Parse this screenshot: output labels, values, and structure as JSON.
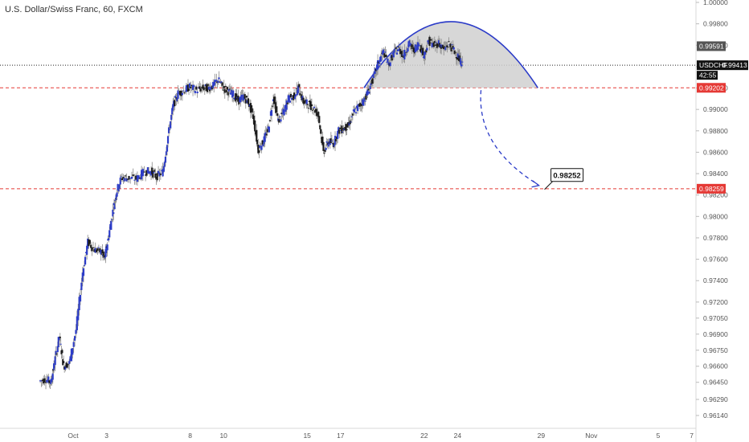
{
  "title": "U.S. Dollar/Swiss Franc, 60, FXCM",
  "chart_data": {
    "type": "candlestick",
    "symbol": "USDCHF",
    "ylim": [
      0.96,
      1.001
    ],
    "y_ticks": [
      "1.00000",
      "0.99800",
      "0.99600",
      "0.99400",
      "0.99200",
      "0.99000",
      "0.98800",
      "0.98600",
      "0.98400",
      "0.98200",
      "0.98000",
      "0.97800",
      "0.97600",
      "0.97400",
      "0.97200",
      "0.97050",
      "0.96900",
      "0.96750",
      "0.96600",
      "0.96450",
      "0.96290",
      "0.96140"
    ],
    "x_ticks": [
      {
        "label": "Oct",
        "day": 1
      },
      {
        "label": "3",
        "day": 3
      },
      {
        "label": "8",
        "day": 8
      },
      {
        "label": "10",
        "day": 10
      },
      {
        "label": "15",
        "day": 15
      },
      {
        "label": "17",
        "day": 17
      },
      {
        "label": "22",
        "day": 22
      },
      {
        "label": "24",
        "day": 24
      },
      {
        "label": "29",
        "day": 29
      },
      {
        "label": "Nov",
        "day": 32
      },
      {
        "label": "5",
        "day": 36
      },
      {
        "label": "7",
        "day": 38
      }
    ],
    "price_path": [
      [
        -1.0,
        0.9646
      ],
      [
        -0.6,
        0.9648
      ],
      [
        -0.3,
        0.9645
      ],
      [
        -0.1,
        0.9663
      ],
      [
        0.2,
        0.9688
      ],
      [
        0.45,
        0.966
      ],
      [
        0.8,
        0.9663
      ],
      [
        1.2,
        0.9694
      ],
      [
        1.6,
        0.9748
      ],
      [
        1.9,
        0.9776
      ],
      [
        2.3,
        0.9769
      ],
      [
        2.7,
        0.9767
      ],
      [
        2.9,
        0.976
      ],
      [
        3.1,
        0.9778
      ],
      [
        3.4,
        0.9805
      ],
      [
        3.6,
        0.9822
      ],
      [
        3.9,
        0.9836
      ],
      [
        4.3,
        0.9836
      ],
      [
        4.8,
        0.9835
      ],
      [
        5.3,
        0.9842
      ],
      [
        5.7,
        0.9842
      ],
      [
        6.0,
        0.9837
      ],
      [
        6.4,
        0.9842
      ],
      [
        6.7,
        0.9875
      ],
      [
        7.0,
        0.9903
      ],
      [
        7.3,
        0.9915
      ],
      [
        7.7,
        0.9918
      ],
      [
        8.0,
        0.9921
      ],
      [
        8.4,
        0.9918
      ],
      [
        8.8,
        0.992
      ],
      [
        9.1,
        0.992
      ],
      [
        9.4,
        0.9922
      ],
      [
        9.7,
        0.9928
      ],
      [
        10.0,
        0.992
      ],
      [
        10.3,
        0.9917
      ],
      [
        10.6,
        0.9914
      ],
      [
        10.9,
        0.9908
      ],
      [
        11.2,
        0.9912
      ],
      [
        11.5,
        0.9907
      ],
      [
        11.8,
        0.9893
      ],
      [
        12.1,
        0.9862
      ],
      [
        12.4,
        0.987
      ],
      [
        12.7,
        0.9882
      ],
      [
        13.0,
        0.9912
      ],
      [
        13.3,
        0.9889
      ],
      [
        13.6,
        0.9897
      ],
      [
        13.9,
        0.991
      ],
      [
        14.2,
        0.9912
      ],
      [
        14.5,
        0.992
      ],
      [
        14.8,
        0.9907
      ],
      [
        15.1,
        0.9905
      ],
      [
        15.4,
        0.9902
      ],
      [
        15.7,
        0.9894
      ],
      [
        16.0,
        0.986
      ],
      [
        16.3,
        0.987
      ],
      [
        16.6,
        0.9868
      ],
      [
        16.9,
        0.988
      ],
      [
        17.2,
        0.9882
      ],
      [
        17.5,
        0.9885
      ],
      [
        17.8,
        0.9897
      ],
      [
        18.1,
        0.9903
      ],
      [
        18.4,
        0.9908
      ],
      [
        18.7,
        0.9918
      ],
      [
        19.0,
        0.993
      ],
      [
        19.3,
        0.9945
      ],
      [
        19.6,
        0.9954
      ],
      [
        19.9,
        0.9942
      ],
      [
        20.2,
        0.9953
      ],
      [
        20.5,
        0.9957
      ],
      [
        20.8,
        0.995
      ],
      [
        21.1,
        0.9962
      ],
      [
        21.4,
        0.9955
      ],
      [
        21.7,
        0.9962
      ],
      [
        22.0,
        0.995
      ],
      [
        22.3,
        0.9964
      ],
      [
        22.6,
        0.996
      ],
      [
        22.9,
        0.9962
      ],
      [
        23.2,
        0.9956
      ],
      [
        23.5,
        0.9961
      ],
      [
        23.8,
        0.9955
      ],
      [
        24.1,
        0.9948
      ],
      [
        24.3,
        0.9941
      ]
    ],
    "current_price": "0.99413",
    "countdown": "42:55",
    "price_tags": [
      {
        "value": 0.99591,
        "label": "0.99591",
        "style": "gray"
      },
      {
        "value": 0.99413,
        "label": "USDCHF",
        "label2": "0.99413",
        "style": "black"
      },
      {
        "value": 0.99202,
        "label": "0.99202",
        "style": "red"
      },
      {
        "value": 0.98259,
        "label": "0.98259",
        "style": "red"
      }
    ],
    "horizontal_lines": [
      {
        "value": 0.99202,
        "color": "#e53935",
        "dash": true
      },
      {
        "value": 0.98259,
        "color": "#e53935",
        "dash": true
      },
      {
        "value": 0.99413,
        "color": "#222222",
        "dash": true,
        "dotted": true
      }
    ],
    "arc_pattern": {
      "day_start": 18.4,
      "day_end": 28.8,
      "base": 0.99202,
      "peak": 0.9982,
      "fill": "#d0d0d0",
      "stroke": "#2c3cc8"
    },
    "projection_target": {
      "label": "0.98252",
      "day": 29.2,
      "value": 0.98252
    },
    "projection_arrow": {
      "color": "#2c3cc8",
      "from": [
        25.4,
        0.9918
      ],
      "to": [
        29.2,
        0.98252
      ]
    },
    "colors": {
      "up": "#2c3cc8",
      "down": "#1a1a1a",
      "grid": "#f0f0f0"
    }
  }
}
